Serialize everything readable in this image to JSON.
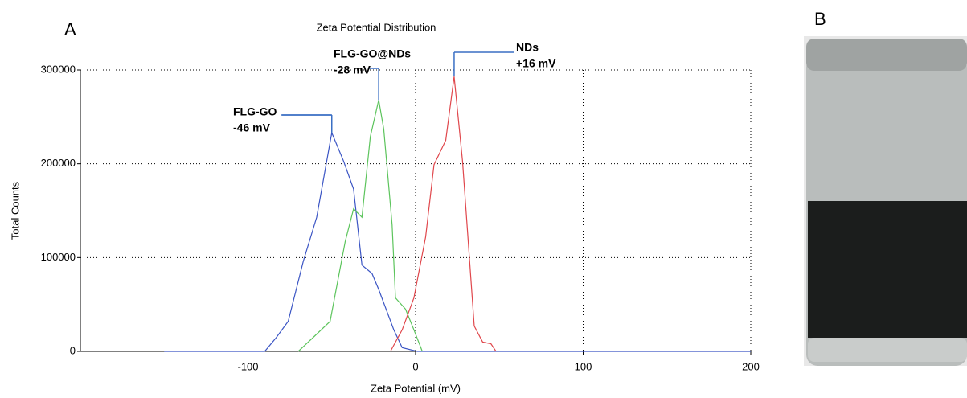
{
  "panel_labels": [
    "A",
    "B"
  ],
  "chart_data": {
    "type": "line",
    "title": "Zeta Potential Distribution",
    "x_label": "Zeta Potential (mV)",
    "y_label": "Total Counts",
    "xlim": [
      -200,
      200
    ],
    "ylim": [
      0,
      300000
    ],
    "xticks": [
      -100,
      0,
      100,
      200
    ],
    "yticks": [
      0,
      100000,
      200000,
      300000
    ],
    "grid": true,
    "series": [
      {
        "name": "FLG-GO",
        "annotation": "-46 mV",
        "color": "#3b55c4",
        "x": [
          -150,
          -90,
          -83,
          -76,
          -67,
          -59,
          -50,
          -43,
          -37,
          -32,
          -26,
          -22,
          -13,
          -8,
          1,
          200
        ],
        "values": [
          0,
          0,
          15000,
          32000,
          96000,
          143000,
          233000,
          203000,
          173000,
          92000,
          83000,
          66000,
          23000,
          4000,
          0,
          0
        ]
      },
      {
        "name": "FLG-GO@NDs",
        "annotation": "-28 mV",
        "color": "#5cc45c",
        "x": [
          -70,
          -61,
          -51,
          -42,
          -37,
          -32,
          -27,
          -22,
          -19,
          -14,
          -12,
          -6,
          -1,
          4
        ],
        "values": [
          0,
          15000,
          32000,
          117000,
          152000,
          143000,
          229000,
          268000,
          237000,
          135000,
          57000,
          45000,
          23000,
          0
        ]
      },
      {
        "name": "NDs",
        "annotation": "+16 mV",
        "color": "#e0474c",
        "x": [
          -15,
          -8,
          -1,
          6,
          11,
          18,
          23,
          28,
          35,
          40,
          45,
          48
        ],
        "values": [
          0,
          23000,
          57000,
          122000,
          199000,
          225000,
          293000,
          203000,
          27000,
          10000,
          8000,
          0
        ]
      }
    ]
  }
}
